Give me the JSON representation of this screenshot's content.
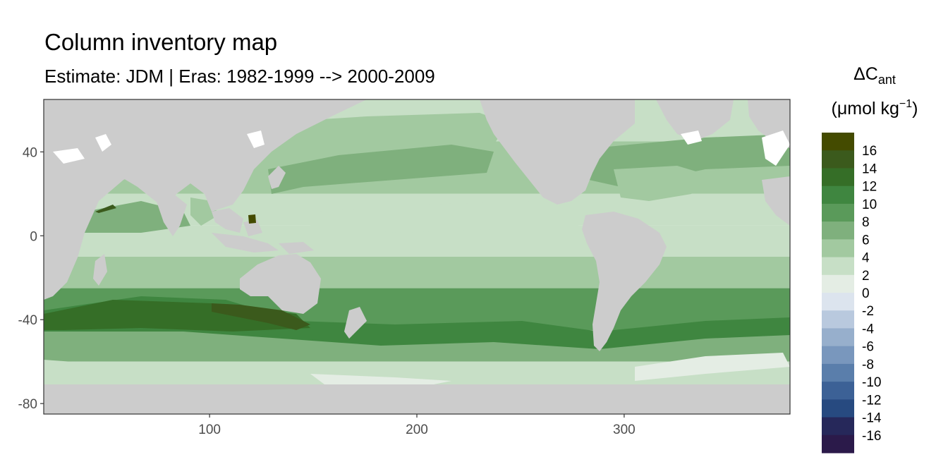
{
  "chart": {
    "title": "Column inventory map",
    "subtitle": "Estimate: JDM  | Eras: 1982-1999 --> 2000-2009"
  },
  "legend": {
    "title_main": "ΔC",
    "title_sub": "ant",
    "units_prefix": "(μmol kg",
    "units_exp": "−1",
    "units_suffix": ")"
  },
  "colors": {
    "land": "#cccccc",
    "missing": "#ffffff",
    "panel_border": "#333333",
    "tick": "#333333"
  },
  "chart_data": {
    "type": "heatmap",
    "title": "Column inventory map",
    "subtitle": "Estimate: JDM  | Eras: 1982-1999 --> 2000-2009",
    "x_ticks": [
      "100",
      "200",
      "300"
    ],
    "y_ticks": [
      "40",
      "0",
      "-40",
      "-80"
    ],
    "x_tick_values": [
      100,
      200,
      300
    ],
    "y_tick_values": [
      40,
      0,
      -40,
      -80
    ],
    "xlim": [
      20,
      380
    ],
    "ylim": [
      -85,
      65
    ],
    "grid": false,
    "legend_position": "right",
    "color_scale": {
      "breaks": [
        "16",
        "14",
        "12",
        "10",
        "8",
        "6",
        "4",
        "2",
        "0",
        "-2",
        "-4",
        "-6",
        "-8",
        "-10",
        "-12",
        "-14",
        "-16"
      ],
      "colors": [
        "#444b00",
        "#3b5a1c",
        "#356e27",
        "#3f8640",
        "#5a9a5a",
        "#7fb07d",
        "#a2c9a0",
        "#c7dfc6",
        "#e4ede4",
        "#dce4ee",
        "#b9c9de",
        "#97afcc",
        "#7997bd",
        "#5a7eab",
        "#3c6196",
        "#274a80",
        "#26285a",
        "#2b1a4a"
      ]
    },
    "latitude_bands": [
      {
        "lat_from": 65,
        "lat_to": 45,
        "value": 3
      },
      {
        "lat_from": 45,
        "lat_to": 20,
        "value": 5
      },
      {
        "lat_from": 20,
        "lat_to": 5,
        "value": 3
      },
      {
        "lat_from": 5,
        "lat_to": -10,
        "value": 3
      },
      {
        "lat_from": -10,
        "lat_to": -25,
        "value": 5
      },
      {
        "lat_from": -25,
        "lat_to": -45,
        "value": 9
      },
      {
        "lat_from": -45,
        "lat_to": -60,
        "value": 7
      },
      {
        "lat_from": -60,
        "lat_to": -72,
        "value": 4
      }
    ]
  }
}
